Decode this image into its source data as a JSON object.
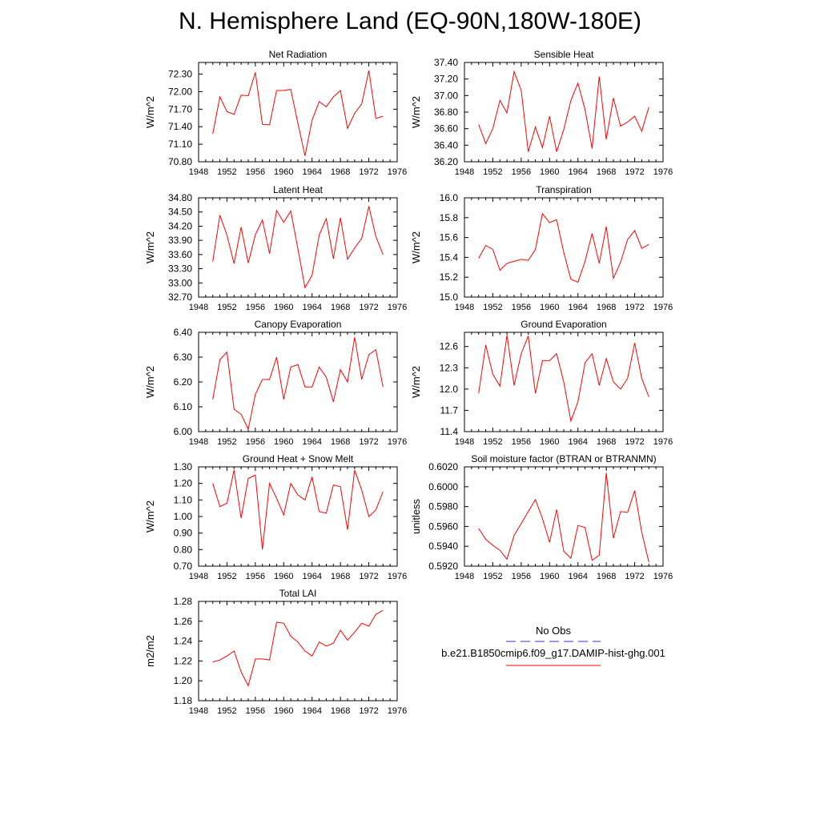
{
  "page": {
    "title": "N. Hemisphere Land (EQ-90N,180W-180E)"
  },
  "legend": {
    "obs_label": "No Obs",
    "obs_color": "#3333cc",
    "model_label": "b.e21.B1850cmip6.f09_g17.DAMIP-hist-ghg.001",
    "model_color": "#ff0000"
  },
  "chart_data": [
    {
      "type": "line",
      "title": "Net Radiation",
      "ylabel": "W/m^2",
      "xlim": [
        1948,
        1976
      ],
      "x_ticks": [
        "1948",
        "1952",
        "1956",
        "1960",
        "1964",
        "1968",
        "1972",
        "1976"
      ],
      "ylim": [
        70.8,
        72.5
      ],
      "y_ticks": [
        "70.80",
        "71.10",
        "71.40",
        "71.70",
        "72.00",
        "72.30"
      ],
      "x": [
        1950,
        1951,
        1952,
        1953,
        1954,
        1955,
        1956,
        1957,
        1958,
        1959,
        1960,
        1961,
        1962,
        1963,
        1964,
        1965,
        1966,
        1967,
        1968,
        1969,
        1970,
        1971,
        1972,
        1973,
        1974
      ],
      "values": [
        71.28,
        71.91,
        71.66,
        71.61,
        71.94,
        71.93,
        72.33,
        71.44,
        71.43,
        72.02,
        72.02,
        72.04,
        71.46,
        70.9,
        71.51,
        71.83,
        71.74,
        71.91,
        72.02,
        71.37,
        71.63,
        71.79,
        72.36,
        71.54,
        71.58
      ]
    },
    {
      "type": "line",
      "title": "Sensible Heat",
      "ylabel": "W/m^2",
      "xlim": [
        1948,
        1976
      ],
      "x_ticks": [
        "1948",
        "1952",
        "1956",
        "1960",
        "1964",
        "1968",
        "1972",
        "1976"
      ],
      "ylim": [
        36.2,
        37.4
      ],
      "y_ticks": [
        "36.20",
        "36.40",
        "36.60",
        "36.80",
        "37.00",
        "37.20",
        "37.40"
      ],
      "x": [
        1950,
        1951,
        1952,
        1953,
        1954,
        1955,
        1956,
        1957,
        1958,
        1959,
        1960,
        1961,
        1962,
        1963,
        1964,
        1965,
        1966,
        1967,
        1968,
        1969,
        1970,
        1971,
        1972,
        1973,
        1974
      ],
      "values": [
        36.65,
        36.42,
        36.6,
        36.94,
        36.79,
        37.29,
        37.06,
        36.32,
        36.62,
        36.37,
        36.75,
        36.32,
        36.59,
        36.94,
        37.15,
        36.83,
        36.36,
        37.23,
        36.47,
        36.97,
        36.63,
        36.68,
        36.75,
        36.57,
        36.86
      ]
    },
    {
      "type": "line",
      "title": "Latent Heat",
      "ylabel": "W/m^2",
      "xlim": [
        1948,
        1976
      ],
      "x_ticks": [
        "1948",
        "1952",
        "1956",
        "1960",
        "1964",
        "1968",
        "1972",
        "1976"
      ],
      "ylim": [
        32.7,
        34.8
      ],
      "y_ticks": [
        "32.70",
        "33.00",
        "33.30",
        "33.60",
        "33.90",
        "34.20",
        "34.50",
        "34.80"
      ],
      "x": [
        1950,
        1951,
        1952,
        1953,
        1954,
        1955,
        1956,
        1957,
        1958,
        1959,
        1960,
        1961,
        1962,
        1963,
        1964,
        1965,
        1966,
        1967,
        1968,
        1969,
        1970,
        1971,
        1972,
        1973,
        1974
      ],
      "values": [
        33.45,
        34.43,
        34.01,
        33.41,
        34.18,
        33.42,
        34.02,
        34.33,
        33.62,
        34.53,
        34.28,
        34.52,
        33.72,
        32.9,
        33.16,
        34.01,
        34.36,
        33.51,
        34.38,
        33.5,
        33.74,
        33.94,
        34.62,
        33.98,
        33.6
      ]
    },
    {
      "type": "line",
      "title": "Transpiration",
      "ylabel": "W/m^2",
      "xlim": [
        1948,
        1976
      ],
      "x_ticks": [
        "1948",
        "1952",
        "1956",
        "1960",
        "1964",
        "1968",
        "1972",
        "1976"
      ],
      "ylim": [
        15.0,
        16.0
      ],
      "y_ticks": [
        "15.0",
        "15.2",
        "15.4",
        "15.6",
        "15.8",
        "16.0"
      ],
      "x": [
        1950,
        1951,
        1952,
        1953,
        1954,
        1955,
        1956,
        1957,
        1958,
        1959,
        1960,
        1961,
        1962,
        1963,
        1964,
        1965,
        1966,
        1967,
        1968,
        1969,
        1970,
        1971,
        1972,
        1973,
        1974
      ],
      "values": [
        15.39,
        15.52,
        15.48,
        15.27,
        15.34,
        15.36,
        15.38,
        15.37,
        15.48,
        15.84,
        15.75,
        15.78,
        15.45,
        15.18,
        15.15,
        15.36,
        15.64,
        15.34,
        15.71,
        15.19,
        15.35,
        15.58,
        15.67,
        15.49,
        15.53
      ]
    },
    {
      "type": "line",
      "title": "Canopy Evaporation",
      "ylabel": "W/m^2",
      "xlim": [
        1948,
        1976
      ],
      "x_ticks": [
        "1948",
        "1952",
        "1956",
        "1960",
        "1964",
        "1968",
        "1972",
        "1976"
      ],
      "ylim": [
        6.0,
        6.4
      ],
      "y_ticks": [
        "6.00",
        "6.10",
        "6.20",
        "6.30",
        "6.40"
      ],
      "x": [
        1950,
        1951,
        1952,
        1953,
        1954,
        1955,
        1956,
        1957,
        1958,
        1959,
        1960,
        1961,
        1962,
        1963,
        1964,
        1965,
        1966,
        1967,
        1968,
        1969,
        1970,
        1971,
        1972,
        1973,
        1974
      ],
      "values": [
        6.13,
        6.29,
        6.32,
        6.09,
        6.07,
        6.01,
        6.15,
        6.21,
        6.21,
        6.3,
        6.13,
        6.26,
        6.27,
        6.18,
        6.18,
        6.26,
        6.22,
        6.12,
        6.25,
        6.2,
        6.38,
        6.21,
        6.31,
        6.33,
        6.18
      ]
    },
    {
      "type": "line",
      "title": "Ground Evaporation",
      "ylabel": "W/m^2",
      "xlim": [
        1948,
        1976
      ],
      "x_ticks": [
        "1948",
        "1952",
        "1956",
        "1960",
        "1964",
        "1968",
        "1972",
        "1976"
      ],
      "ylim": [
        11.4,
        12.8
      ],
      "y_ticks": [
        "11.4",
        "11.7",
        "12.0",
        "12.3",
        "12.6"
      ],
      "x": [
        1950,
        1951,
        1952,
        1953,
        1954,
        1955,
        1956,
        1957,
        1958,
        1959,
        1960,
        1961,
        1962,
        1963,
        1964,
        1965,
        1966,
        1967,
        1968,
        1969,
        1970,
        1971,
        1972,
        1973,
        1974
      ],
      "values": [
        11.94,
        12.62,
        12.21,
        12.04,
        12.76,
        12.05,
        12.5,
        12.75,
        11.94,
        12.4,
        12.4,
        12.5,
        12.1,
        11.55,
        11.82,
        12.37,
        12.5,
        12.05,
        12.43,
        12.1,
        12.0,
        12.15,
        12.65,
        12.15,
        11.89
      ]
    },
    {
      "type": "line",
      "title": "Ground Heat + Snow Melt",
      "ylabel": "W/m^2",
      "xlim": [
        1948,
        1976
      ],
      "x_ticks": [
        "1948",
        "1952",
        "1956",
        "1960",
        "1964",
        "1968",
        "1972",
        "1976"
      ],
      "ylim": [
        0.7,
        1.3
      ],
      "y_ticks": [
        "0.70",
        "0.80",
        "0.90",
        "1.00",
        "1.10",
        "1.20",
        "1.30"
      ],
      "x": [
        1950,
        1951,
        1952,
        1953,
        1954,
        1955,
        1956,
        1957,
        1958,
        1959,
        1960,
        1961,
        1962,
        1963,
        1964,
        1965,
        1966,
        1967,
        1968,
        1969,
        1970,
        1971,
        1972,
        1973,
        1974
      ],
      "values": [
        1.2,
        1.06,
        1.08,
        1.28,
        0.99,
        1.23,
        1.25,
        0.8,
        1.2,
        1.11,
        1.01,
        1.2,
        1.13,
        1.1,
        1.24,
        1.03,
        1.02,
        1.19,
        1.18,
        0.92,
        1.28,
        1.16,
        1.0,
        1.04,
        1.15
      ]
    },
    {
      "type": "line",
      "title": "Soil moisture factor (BTRAN or BTRANMN)",
      "ylabel": "unitless",
      "xlim": [
        1948,
        1976
      ],
      "x_ticks": [
        "1948",
        "1952",
        "1956",
        "1960",
        "1964",
        "1968",
        "1972",
        "1976"
      ],
      "ylim": [
        0.592,
        0.602
      ],
      "y_ticks": [
        "0.5920",
        "0.5940",
        "0.5960",
        "0.5980",
        "0.6000",
        "0.6020"
      ],
      "x": [
        1950,
        1951,
        1952,
        1953,
        1954,
        1955,
        1956,
        1957,
        1958,
        1959,
        1960,
        1961,
        1962,
        1963,
        1964,
        1965,
        1966,
        1967,
        1968,
        1969,
        1970,
        1971,
        1972,
        1973,
        1974
      ],
      "values": [
        0.5958,
        0.5947,
        0.5941,
        0.5936,
        0.5927,
        0.5951,
        0.5963,
        0.5975,
        0.5987,
        0.5968,
        0.5944,
        0.5977,
        0.5935,
        0.5928,
        0.5961,
        0.5959,
        0.5926,
        0.5931,
        0.6014,
        0.5948,
        0.5975,
        0.5974,
        0.5996,
        0.5954,
        0.5924
      ]
    },
    {
      "type": "line",
      "title": "Total LAI",
      "ylabel": "m2/m2",
      "xlim": [
        1948,
        1976
      ],
      "x_ticks": [
        "1948",
        "1952",
        "1956",
        "1960",
        "1964",
        "1968",
        "1972",
        "1976"
      ],
      "ylim": [
        1.18,
        1.28
      ],
      "y_ticks": [
        "1.18",
        "1.20",
        "1.22",
        "1.24",
        "1.26",
        "1.28"
      ],
      "x": [
        1950,
        1951,
        1952,
        1953,
        1954,
        1955,
        1956,
        1957,
        1958,
        1959,
        1960,
        1961,
        1962,
        1963,
        1964,
        1965,
        1966,
        1967,
        1968,
        1969,
        1970,
        1971,
        1972,
        1973,
        1974
      ],
      "values": [
        1.219,
        1.221,
        1.225,
        1.23,
        1.209,
        1.195,
        1.222,
        1.222,
        1.221,
        1.259,
        1.258,
        1.245,
        1.239,
        1.23,
        1.225,
        1.239,
        1.235,
        1.238,
        1.251,
        1.241,
        1.249,
        1.258,
        1.255,
        1.267,
        1.271
      ]
    }
  ]
}
